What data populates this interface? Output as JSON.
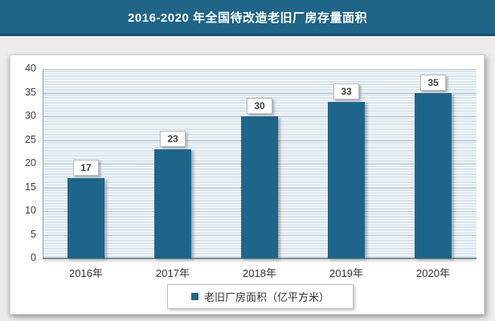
{
  "header": {
    "title": "2016-2020 年全国待改造老旧厂房存量面积",
    "bg_color": "#1e6588",
    "border_color": "#15506e",
    "text_color": "#ffffff"
  },
  "chart_data": {
    "type": "bar",
    "title": "2016-2020 年全国待改造老旧厂房存量面积",
    "categories": [
      "2016年",
      "2017年",
      "2018年",
      "2019年",
      "2020年"
    ],
    "values": [
      17,
      23,
      30,
      33,
      35
    ],
    "series_name": "老旧厂房面积（亿平方米）",
    "xlabel": "",
    "ylabel": "",
    "ylim": [
      0,
      40
    ],
    "yticks": [
      0,
      5,
      10,
      15,
      20,
      25,
      30,
      35,
      40
    ],
    "grid": true,
    "data_labels": true,
    "bar_color": "#1d6589",
    "legend_position": "bottom"
  },
  "legend": {
    "label": "老旧厂房面积（亿平方米）",
    "marker_color": "#1d6589"
  }
}
